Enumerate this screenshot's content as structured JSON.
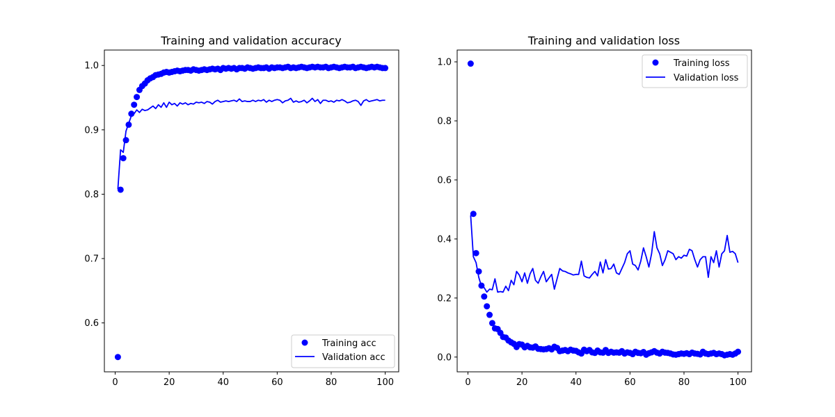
{
  "figure": {
    "background": "#ffffff"
  },
  "chart_data": [
    {
      "type": "scatter",
      "title": "Training and validation accuracy",
      "xlabel": "",
      "ylabel": "",
      "xlim": [
        -4,
        105
      ],
      "ylim": [
        0.524,
        1.024
      ],
      "xticks": [
        0,
        20,
        40,
        60,
        80,
        100
      ],
      "xtick_labels": [
        "0",
        "20",
        "40",
        "60",
        "80",
        "100"
      ],
      "yticks": [
        0.6,
        0.7,
        0.8,
        0.9,
        1.0
      ],
      "ytick_labels": [
        "0.6",
        "0.7",
        "0.8",
        "0.9",
        "1.0"
      ],
      "legend_position": "lower-right",
      "grid": false,
      "color": "#0000ff",
      "series": [
        {
          "name": "Training acc",
          "style": "markers",
          "x_start": 1,
          "values": [
            0.547,
            0.807,
            0.856,
            0.884,
            0.908,
            0.925,
            0.939,
            0.951,
            0.962,
            0.968,
            0.972,
            0.977,
            0.98,
            0.982,
            0.985,
            0.986,
            0.987,
            0.989,
            0.99,
            0.989,
            0.99,
            0.991,
            0.992,
            0.991,
            0.992,
            0.993,
            0.993,
            0.992,
            0.994,
            0.993,
            0.992,
            0.993,
            0.994,
            0.993,
            0.994,
            0.995,
            0.994,
            0.995,
            0.993,
            0.996,
            0.995,
            0.996,
            0.995,
            0.996,
            0.994,
            0.996,
            0.996,
            0.995,
            0.997,
            0.996,
            0.995,
            0.996,
            0.997,
            0.996,
            0.996,
            0.997,
            0.995,
            0.997,
            0.996,
            0.997,
            0.997,
            0.996,
            0.997,
            0.998,
            0.996,
            0.997,
            0.996,
            0.997,
            0.998,
            0.997,
            0.996,
            0.997,
            0.998,
            0.997,
            0.998,
            0.997,
            0.997,
            0.998,
            0.996,
            0.997,
            0.998,
            0.997,
            0.996,
            0.997,
            0.998,
            0.997,
            0.997,
            0.998,
            0.996,
            0.997,
            0.998,
            0.997,
            0.996,
            0.997,
            0.998,
            0.997,
            0.998,
            0.997,
            0.996,
            0.996
          ]
        },
        {
          "name": "Validation acc",
          "style": "line",
          "x_start": 1,
          "values": [
            0.808,
            0.869,
            0.865,
            0.898,
            0.91,
            0.922,
            0.925,
            0.931,
            0.927,
            0.932,
            0.93,
            0.931,
            0.934,
            0.937,
            0.933,
            0.939,
            0.935,
            0.942,
            0.935,
            0.943,
            0.939,
            0.941,
            0.937,
            0.942,
            0.94,
            0.942,
            0.939,
            0.941,
            0.94,
            0.943,
            0.942,
            0.943,
            0.941,
            0.944,
            0.943,
            0.94,
            0.944,
            0.946,
            0.943,
            0.944,
            0.945,
            0.944,
            0.945,
            0.946,
            0.944,
            0.948,
            0.944,
            0.945,
            0.944,
            0.944,
            0.946,
            0.944,
            0.946,
            0.945,
            0.947,
            0.943,
            0.946,
            0.944,
            0.946,
            0.947,
            0.946,
            0.942,
            0.945,
            0.946,
            0.949,
            0.943,
            0.945,
            0.943,
            0.944,
            0.946,
            0.942,
            0.945,
            0.949,
            0.944,
            0.947,
            0.941,
            0.946,
            0.946,
            0.944,
            0.945,
            0.943,
            0.946,
            0.945,
            0.947,
            0.945,
            0.942,
            0.943,
            0.945,
            0.946,
            0.944,
            0.938,
            0.945,
            0.947,
            0.944,
            0.945,
            0.946,
            0.947,
            0.945,
            0.946,
            0.946
          ]
        }
      ]
    },
    {
      "type": "scatter",
      "title": "Training and validation loss",
      "xlabel": "",
      "ylabel": "",
      "xlim": [
        -4,
        105
      ],
      "ylim": [
        -0.05,
        1.04
      ],
      "xticks": [
        0,
        20,
        40,
        60,
        80,
        100
      ],
      "xtick_labels": [
        "0",
        "20",
        "40",
        "60",
        "80",
        "100"
      ],
      "yticks": [
        0.0,
        0.2,
        0.4,
        0.6,
        0.8,
        1.0
      ],
      "ytick_labels": [
        "0.0",
        "0.2",
        "0.4",
        "0.6",
        "0.8",
        "1.0"
      ],
      "legend_position": "upper-right",
      "grid": false,
      "color": "#0000ff",
      "series": [
        {
          "name": "Training loss",
          "style": "markers",
          "x_start": 1,
          "values": [
            0.994,
            0.485,
            0.352,
            0.29,
            0.242,
            0.205,
            0.172,
            0.143,
            0.115,
            0.097,
            0.095,
            0.082,
            0.068,
            0.066,
            0.056,
            0.05,
            0.045,
            0.034,
            0.044,
            0.042,
            0.033,
            0.038,
            0.033,
            0.032,
            0.036,
            0.028,
            0.027,
            0.026,
            0.027,
            0.03,
            0.026,
            0.035,
            0.031,
            0.02,
            0.022,
            0.024,
            0.02,
            0.025,
            0.022,
            0.021,
            0.016,
            0.012,
            0.025,
            0.02,
            0.024,
            0.016,
            0.014,
            0.022,
            0.016,
            0.015,
            0.024,
            0.014,
            0.018,
            0.015,
            0.016,
            0.015,
            0.02,
            0.012,
            0.016,
            0.014,
            0.01,
            0.018,
            0.014,
            0.013,
            0.017,
            0.008,
            0.013,
            0.016,
            0.02,
            0.015,
            0.012,
            0.018,
            0.015,
            0.014,
            0.012,
            0.009,
            0.008,
            0.01,
            0.012,
            0.011,
            0.013,
            0.01,
            0.015,
            0.012,
            0.011,
            0.009,
            0.018,
            0.012,
            0.01,
            0.012,
            0.014,
            0.01,
            0.012,
            0.01,
            0.006,
            0.008,
            0.01,
            0.008,
            0.012,
            0.018
          ]
        },
        {
          "name": "Validation loss",
          "style": "line",
          "x_start": 1,
          "values": [
            0.48,
            0.34,
            0.32,
            0.27,
            0.24,
            0.235,
            0.22,
            0.23,
            0.228,
            0.265,
            0.22,
            0.222,
            0.22,
            0.24,
            0.225,
            0.26,
            0.245,
            0.29,
            0.278,
            0.255,
            0.285,
            0.25,
            0.282,
            0.3,
            0.26,
            0.25,
            0.272,
            0.29,
            0.255,
            0.268,
            0.28,
            0.23,
            0.265,
            0.3,
            0.292,
            0.29,
            0.285,
            0.282,
            0.278,
            0.28,
            0.28,
            0.325,
            0.275,
            0.27,
            0.268,
            0.28,
            0.29,
            0.275,
            0.322,
            0.285,
            0.33,
            0.298,
            0.3,
            0.315,
            0.285,
            0.28,
            0.3,
            0.32,
            0.35,
            0.36,
            0.315,
            0.31,
            0.295,
            0.325,
            0.37,
            0.34,
            0.305,
            0.35,
            0.425,
            0.37,
            0.35,
            0.31,
            0.33,
            0.36,
            0.355,
            0.35,
            0.33,
            0.34,
            0.335,
            0.345,
            0.342,
            0.365,
            0.36,
            0.33,
            0.305,
            0.33,
            0.34,
            0.34,
            0.27,
            0.34,
            0.32,
            0.36,
            0.305,
            0.35,
            0.36,
            0.412,
            0.355,
            0.358,
            0.35,
            0.32
          ]
        }
      ]
    }
  ]
}
